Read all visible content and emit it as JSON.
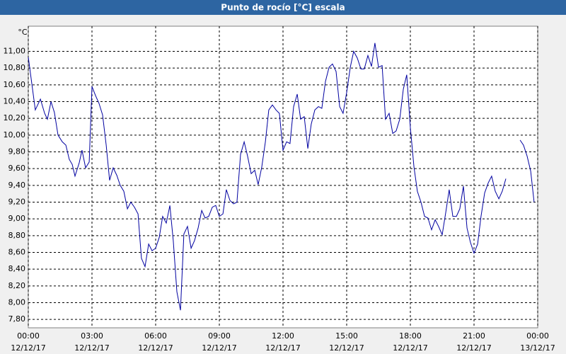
{
  "chart_data": {
    "type": "line",
    "title": "Punto de rocío [°C] escala",
    "y_unit": "°C",
    "x": [
      0,
      0.33,
      0.57,
      0.77,
      0.9,
      1.07,
      1.23,
      1.4,
      1.6,
      1.77,
      1.93,
      2.07,
      2.2,
      2.4,
      2.53,
      2.7,
      2.87,
      3.0,
      3.17,
      3.33,
      3.5,
      3.67,
      3.83,
      4.0,
      4.17,
      4.33,
      4.5,
      4.67,
      4.83,
      5.0,
      5.17,
      5.33,
      5.5,
      5.67,
      5.83,
      6.0,
      6.17,
      6.33,
      6.5,
      6.67,
      6.83,
      7.0,
      7.17,
      7.33,
      7.5,
      7.67,
      7.83,
      8.0,
      8.17,
      8.33,
      8.5,
      8.67,
      8.83,
      9.0,
      9.17,
      9.33,
      9.5,
      9.67,
      9.83,
      10.0,
      10.17,
      10.33,
      10.5,
      10.67,
      10.83,
      11.0,
      11.17,
      11.33,
      11.5,
      11.67,
      11.83,
      12.0,
      12.17,
      12.33,
      12.5,
      12.67,
      12.83,
      13.0,
      13.17,
      13.33,
      13.5,
      13.67,
      13.83,
      14.0,
      14.17,
      14.33,
      14.5,
      14.67,
      14.83,
      15.0,
      15.17,
      15.33,
      15.5,
      15.67,
      15.83,
      16.0,
      16.17,
      16.33,
      16.5,
      16.67,
      16.83,
      17.0,
      17.17,
      17.33,
      17.5,
      17.67,
      17.83,
      18.0,
      18.17,
      18.33,
      18.5,
      18.67,
      18.83,
      19.0,
      19.17,
      19.33,
      19.5,
      19.67,
      19.83,
      20.0,
      20.17,
      20.33,
      20.5,
      20.67,
      20.83,
      21.0,
      21.17,
      21.33,
      21.5,
      21.67,
      21.83,
      22.0,
      22.17,
      22.33,
      22.5,
      22.83,
      23.17,
      23.33,
      23.5,
      23.67,
      23.83
    ],
    "series": [
      {
        "name": "Punto de rocío",
        "color": "#0000a0",
        "values": [
          10.93,
          10.3,
          10.43,
          10.26,
          10.19,
          10.4,
          10.27,
          10.0,
          9.92,
          9.88,
          9.71,
          9.65,
          9.51,
          9.67,
          9.82,
          9.61,
          9.68,
          10.58,
          10.47,
          10.38,
          10.24,
          9.88,
          9.46,
          9.61,
          9.52,
          9.4,
          9.33,
          9.12,
          9.2,
          9.14,
          9.06,
          8.53,
          8.43,
          8.7,
          8.62,
          8.65,
          8.78,
          9.03,
          8.95,
          9.16,
          8.74,
          8.13,
          7.91,
          8.82,
          8.91,
          8.65,
          8.74,
          8.89,
          9.1,
          9.01,
          9.03,
          9.14,
          9.16,
          9.03,
          9.06,
          9.35,
          9.22,
          9.18,
          9.2,
          9.77,
          9.92,
          9.75,
          9.54,
          9.58,
          9.41,
          9.62,
          9.92,
          10.3,
          10.36,
          10.3,
          10.26,
          9.82,
          9.92,
          9.9,
          10.34,
          10.49,
          10.19,
          10.22,
          9.84,
          10.13,
          10.3,
          10.34,
          10.32,
          10.64,
          10.81,
          10.85,
          10.76,
          10.34,
          10.26,
          10.51,
          10.81,
          11.0,
          10.92,
          10.79,
          10.79,
          10.95,
          10.82,
          11.1,
          10.81,
          10.83,
          10.19,
          10.26,
          10.02,
          10.05,
          10.19,
          10.55,
          10.72,
          10.09,
          9.62,
          9.33,
          9.2,
          9.03,
          9.01,
          8.87,
          8.99,
          8.91,
          8.81,
          9.08,
          9.35,
          9.03,
          9.03,
          9.12,
          9.39,
          8.89,
          8.72,
          8.59,
          8.7,
          9.03,
          9.31,
          9.43,
          9.51,
          9.33,
          9.24,
          9.33,
          9.48,
          null,
          9.94,
          9.88,
          9.75,
          9.57,
          9.2
        ]
      }
    ],
    "xlim": [
      0,
      24
    ],
    "xticks": [
      {
        "value": 0,
        "label": "00:00"
      },
      {
        "value": 3,
        "label": "03:00"
      },
      {
        "value": 6,
        "label": "06:00"
      },
      {
        "value": 9,
        "label": "09:00"
      },
      {
        "value": 12,
        "label": "12:00"
      },
      {
        "value": 15,
        "label": "15:00"
      },
      {
        "value": 18,
        "label": "18:00"
      },
      {
        "value": 21,
        "label": "21:00"
      },
      {
        "value": 24,
        "label": "00:00"
      }
    ],
    "xtick_dates": [
      "12/12/17",
      "12/12/17",
      "12/12/17",
      "12/12/17",
      "12/12/17",
      "12/12/17",
      "12/12/17",
      "12/12/17",
      "13/12/17"
    ],
    "ylim": [
      7.7,
      11.3
    ],
    "yticks": [
      {
        "value": 7.8,
        "label": "7,80"
      },
      {
        "value": 8.0,
        "label": "8,00"
      },
      {
        "value": 8.2,
        "label": "8,20"
      },
      {
        "value": 8.4,
        "label": "8,40"
      },
      {
        "value": 8.6,
        "label": "8,60"
      },
      {
        "value": 8.8,
        "label": "8,80"
      },
      {
        "value": 9.0,
        "label": "9,00"
      },
      {
        "value": 9.2,
        "label": "9,20"
      },
      {
        "value": 9.4,
        "label": "9,40"
      },
      {
        "value": 9.6,
        "label": "9,60"
      },
      {
        "value": 9.8,
        "label": "9,80"
      },
      {
        "value": 10.0,
        "label": "10,00"
      },
      {
        "value": 10.2,
        "label": "10,20"
      },
      {
        "value": 10.4,
        "label": "10,40"
      },
      {
        "value": 10.6,
        "label": "10,60"
      },
      {
        "value": 10.8,
        "label": "10,80"
      },
      {
        "value": 11.0,
        "label": "11,00"
      }
    ],
    "grid": true
  }
}
